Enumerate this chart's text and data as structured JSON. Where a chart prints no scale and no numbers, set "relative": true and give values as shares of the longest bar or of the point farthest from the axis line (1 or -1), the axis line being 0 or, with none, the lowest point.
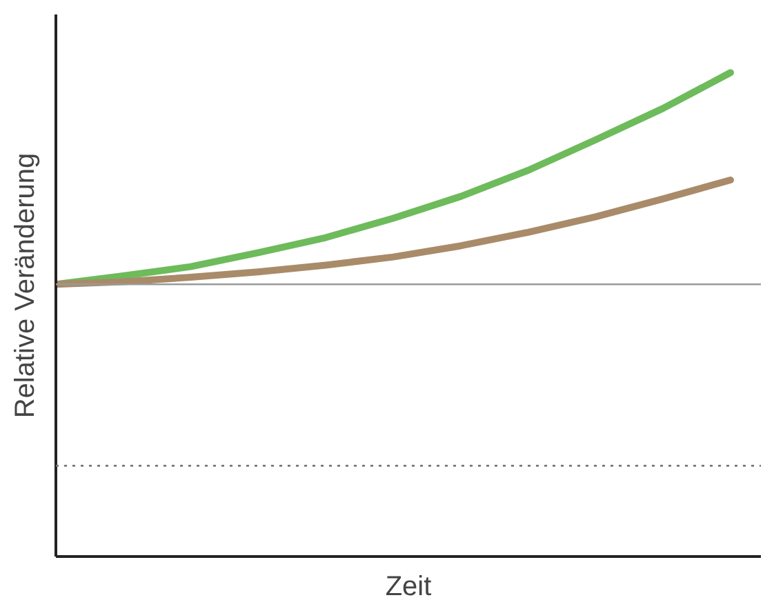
{
  "chart_data": {
    "type": "line",
    "relative": true,
    "xlabel": "Zeit",
    "ylabel": "Relative Veränderung",
    "categories": [
      null,
      null,
      null,
      null,
      null,
      null,
      null,
      null,
      null,
      null,
      null
    ],
    "series": [
      {
        "color": "#6dbb5b",
        "values": [
          0.5625,
          0.58,
          0.599,
          0.628,
          0.659,
          0.699,
          0.744,
          0.798,
          0.861,
          0.926,
          1.0
        ]
      },
      {
        "color": "#a98b69",
        "values": [
          0.5625,
          0.568,
          0.577,
          0.588,
          0.602,
          0.619,
          0.642,
          0.67,
          0.702,
          0.739,
          0.778
        ]
      }
    ],
    "ref_lines": [
      {
        "axis": "y",
        "value": 0.5625,
        "color": "#999999",
        "line_style": "solid"
      },
      {
        "axis": "y",
        "value": 0.1875,
        "color": "#777777",
        "line_style": "dotted"
      }
    ],
    "grid": false,
    "marker": "none",
    "line_style": "solid"
  }
}
